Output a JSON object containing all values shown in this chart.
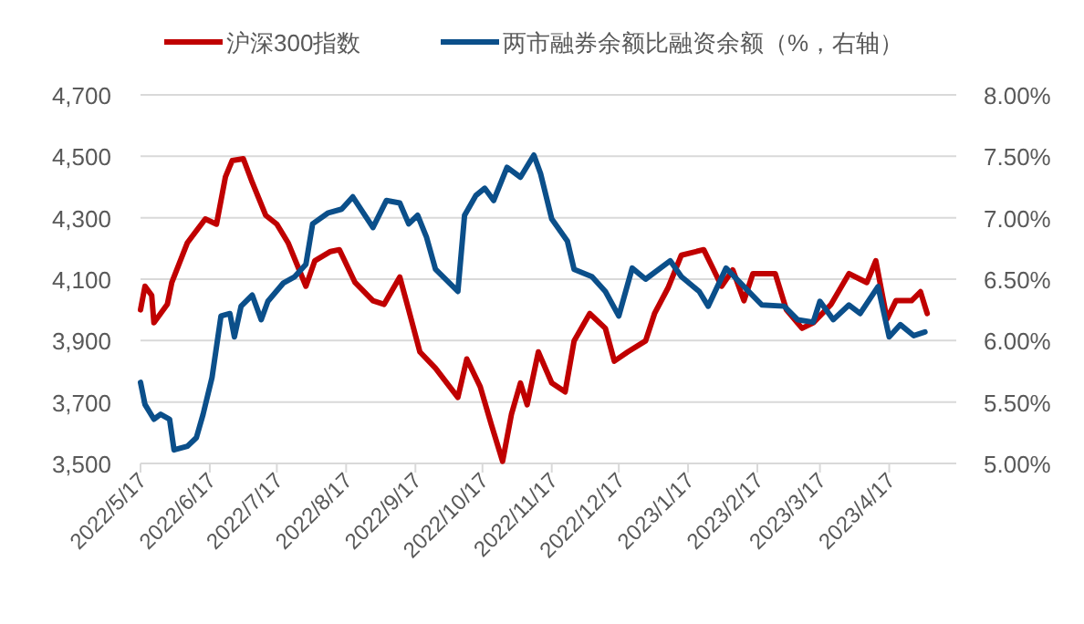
{
  "chart_data": {
    "type": "line",
    "legend": "top",
    "grid": "y",
    "line_style": "solid",
    "marker": "none",
    "xlim": [
      "2022-05-17",
      "2023-05-17"
    ],
    "xticks": [
      {
        "value": "2022-05-17",
        "label": "2022/5/17"
      },
      {
        "value": "2022-06-17",
        "label": "2022/6/17"
      },
      {
        "value": "2022-07-17",
        "label": "2022/7/17"
      },
      {
        "value": "2022-08-17",
        "label": "2022/8/17"
      },
      {
        "value": "2022-09-17",
        "label": "2022/9/17"
      },
      {
        "value": "2022-10-17",
        "label": "2022/10/17"
      },
      {
        "value": "2022-11-17",
        "label": "2022/11/17"
      },
      {
        "value": "2022-12-17",
        "label": "2022/12/17"
      },
      {
        "value": "2023-01-17",
        "label": "2023/1/17"
      },
      {
        "value": "2023-02-17",
        "label": "2023/2/17"
      },
      {
        "value": "2023-03-17",
        "label": "2023/3/17"
      },
      {
        "value": "2023-04-17",
        "label": "2023/4/17"
      }
    ],
    "ylim": [
      3500,
      4700
    ],
    "yticks": [
      {
        "value": 3500,
        "label": "3,500"
      },
      {
        "value": 3700,
        "label": "3,700"
      },
      {
        "value": 3900,
        "label": "3,900"
      },
      {
        "value": 4100,
        "label": "4,100"
      },
      {
        "value": 4300,
        "label": "4,300"
      },
      {
        "value": 4500,
        "label": "4,500"
      },
      {
        "value": 4700,
        "label": "4,700"
      }
    ],
    "y2lim": [
      5,
      8
    ],
    "y2ticks": [
      {
        "value": 5,
        "label": "5.00%"
      },
      {
        "value": 5.5,
        "label": "5.50%"
      },
      {
        "value": 6,
        "label": "6.00%"
      },
      {
        "value": 6.5,
        "label": "6.50%"
      },
      {
        "value": 7,
        "label": "7.00%"
      },
      {
        "value": 7.5,
        "label": "7.50%"
      },
      {
        "value": 8,
        "label": "8.00%"
      }
    ],
    "series": [
      {
        "name": "沪深300指数",
        "color": "#c00000",
        "x": [
          "2022-05-17",
          "2022-05-19",
          "2022-05-22",
          "2022-05-23",
          "2022-05-29",
          "2022-05-31",
          "2022-06-07",
          "2022-06-15",
          "2022-06-20",
          "2022-06-24",
          "2022-06-27",
          "2022-07-02",
          "2022-07-06",
          "2022-07-12",
          "2022-07-17",
          "2022-07-22",
          "2022-07-30",
          "2022-08-03",
          "2022-08-10",
          "2022-08-14",
          "2022-08-21",
          "2022-08-29",
          "2022-09-03",
          "2022-09-10",
          "2022-09-14",
          "2022-09-19",
          "2022-09-26",
          "2022-10-06",
          "2022-10-10",
          "2022-10-16",
          "2022-10-21",
          "2022-10-26",
          "2022-10-30",
          "2022-11-03",
          "2022-11-06",
          "2022-11-11",
          "2022-11-17",
          "2022-11-23",
          "2022-11-27",
          "2022-12-04",
          "2022-12-11",
          "2022-12-15",
          "2022-12-21",
          "2022-12-29",
          "2023-01-02",
          "2023-01-08",
          "2023-01-14",
          "2023-01-24",
          "2023-01-28",
          "2023-02-01",
          "2023-02-06",
          "2023-02-11",
          "2023-02-15",
          "2023-02-25",
          "2023-03-02",
          "2023-03-09",
          "2023-03-14",
          "2023-03-22",
          "2023-03-30",
          "2023-04-07",
          "2023-04-11",
          "2023-04-16",
          "2023-04-20",
          "2023-04-27",
          "2023-05-01",
          "2023-05-04"
        ],
        "values": [
          4000,
          4077,
          4047,
          3958,
          4018,
          4089,
          4219,
          4296,
          4279,
          4433,
          4486,
          4492,
          4415,
          4308,
          4279,
          4219,
          4077,
          4160,
          4190,
          4196,
          4089,
          4030,
          4018,
          4107,
          4000,
          3863,
          3810,
          3715,
          3840,
          3750,
          3626,
          3507,
          3661,
          3762,
          3691,
          3863,
          3762,
          3733,
          3899,
          3988,
          3940,
          3833,
          3863,
          3899,
          3988,
          4071,
          4178,
          4196,
          4137,
          4077,
          4130,
          4030,
          4118,
          4118,
          4000,
          3940,
          3958,
          4018,
          4118,
          4089,
          4160,
          3970,
          4030,
          4030,
          4059,
          3988
        ]
      },
      {
        "name": "两市融券余额比融资余额（%，右轴）",
        "color": "#0b4f8a",
        "axis": "y2",
        "x": [
          "2022-05-17",
          "2022-05-19",
          "2022-05-23",
          "2022-05-26",
          "2022-05-30",
          "2022-06-01",
          "2022-06-07",
          "2022-06-11",
          "2022-06-14",
          "2022-06-18",
          "2022-06-22",
          "2022-06-26",
          "2022-06-28",
          "2022-07-01",
          "2022-07-06",
          "2022-07-10",
          "2022-07-13",
          "2022-07-20",
          "2022-07-25",
          "2022-07-30",
          "2022-08-02",
          "2022-08-09",
          "2022-08-15",
          "2022-08-20",
          "2022-08-29",
          "2022-09-04",
          "2022-09-10",
          "2022-09-14",
          "2022-09-18",
          "2022-09-22",
          "2022-09-26",
          "2022-10-06",
          "2022-10-09",
          "2022-10-14",
          "2022-10-18",
          "2022-10-22",
          "2022-10-28",
          "2022-11-03",
          "2022-11-09",
          "2022-11-12",
          "2022-11-17",
          "2022-11-24",
          "2022-11-27",
          "2022-12-05",
          "2022-12-11",
          "2022-12-17",
          "2022-12-23",
          "2022-12-29",
          "2023-01-09",
          "2023-01-14",
          "2023-01-22",
          "2023-01-26",
          "2023-02-03",
          "2023-02-11",
          "2023-02-19",
          "2023-03-01",
          "2023-03-07",
          "2023-03-14",
          "2023-03-17",
          "2023-03-23",
          "2023-03-30",
          "2023-04-04",
          "2023-04-12",
          "2023-04-17",
          "2023-04-22",
          "2023-04-28",
          "2023-05-03"
        ],
        "values": [
          5.66,
          5.48,
          5.36,
          5.4,
          5.36,
          5.11,
          5.14,
          5.21,
          5.4,
          5.7,
          6.2,
          6.22,
          6.03,
          6.28,
          6.37,
          6.17,
          6.32,
          6.47,
          6.52,
          6.62,
          6.95,
          7.04,
          7.07,
          7.17,
          6.92,
          7.14,
          7.12,
          6.95,
          7.02,
          6.84,
          6.58,
          6.4,
          7.02,
          7.18,
          7.24,
          7.14,
          7.41,
          7.33,
          7.51,
          7.36,
          6.99,
          6.81,
          6.58,
          6.52,
          6.4,
          6.2,
          6.59,
          6.5,
          6.65,
          6.52,
          6.4,
          6.28,
          6.59,
          6.44,
          6.29,
          6.28,
          6.17,
          6.15,
          6.32,
          6.17,
          6.29,
          6.22,
          6.44,
          6.03,
          6.13,
          6.04,
          6.07
        ]
      }
    ]
  }
}
